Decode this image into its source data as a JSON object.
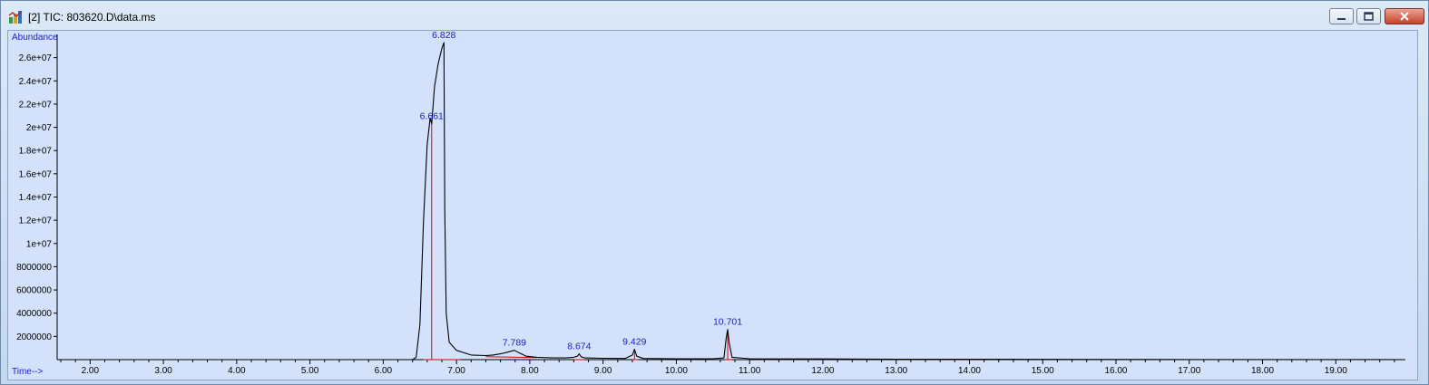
{
  "window": {
    "title": "[2] TIC: 803620.D\\data.ms",
    "icon": "chromatogram-app-icon",
    "controls": [
      "minimize-icon",
      "restore-icon",
      "close-icon"
    ]
  },
  "chart_data": {
    "type": "line",
    "ylabel": "Abundance",
    "xlabel": "Time-->",
    "xlim": [
      1.55,
      19.95
    ],
    "ylim": [
      0,
      28000000.0
    ],
    "x_ticks": [
      "2.00",
      "3.00",
      "4.00",
      "5.00",
      "6.00",
      "7.00",
      "8.00",
      "9.00",
      "10.00",
      "11.00",
      "12.00",
      "13.00",
      "14.00",
      "15.00",
      "16.00",
      "17.00",
      "18.00",
      "19.00"
    ],
    "x_tick_values": [
      2,
      3,
      4,
      5,
      6,
      7,
      8,
      9,
      10,
      11,
      12,
      13,
      14,
      15,
      16,
      17,
      18,
      19
    ],
    "y_ticks": [
      "2000000",
      "4000000",
      "6000000",
      "8000000",
      "1e+07",
      "1.2e+07",
      "1.4e+07",
      "1.6e+07",
      "1.8e+07",
      "2e+07",
      "2.2e+07",
      "2.4e+07",
      "2.6e+07"
    ],
    "y_tick_values": [
      2000000,
      4000000,
      6000000,
      8000000,
      10000000,
      12000000,
      14000000,
      16000000,
      18000000,
      20000000,
      22000000,
      24000000,
      26000000
    ],
    "grid": false,
    "colors": {
      "trace": "#000000",
      "integration": "#e00000",
      "labels": "#1a1acc",
      "background": "#d3e2fa"
    },
    "series": [
      {
        "x": [
          1.55,
          6.4,
          6.45,
          6.5,
          6.55,
          6.6,
          6.64,
          6.661,
          6.67,
          6.7,
          6.75,
          6.8,
          6.828,
          6.84,
          6.86,
          6.9,
          7.0,
          7.2,
          7.4,
          7.5,
          7.6,
          7.7,
          7.789,
          7.85,
          7.95,
          8.1,
          8.3,
          8.5,
          8.6,
          8.65,
          8.674,
          8.7,
          8.75,
          9.0,
          9.3,
          9.4,
          9.429,
          9.46,
          9.55,
          10.0,
          10.5,
          10.65,
          10.68,
          10.701,
          10.72,
          10.76,
          11.0,
          12.0,
          13.0,
          14.0,
          15.0,
          16.0,
          17.0,
          18.0,
          19.0,
          19.95
        ],
        "y": [
          0,
          0,
          200000,
          3000000,
          12000000,
          18500000,
          20800000,
          20300000,
          21000000,
          23500000,
          25500000,
          26800000,
          27300000,
          13000000,
          4000000,
          1500000,
          800000,
          400000,
          350000,
          400000,
          500000,
          650000,
          800000,
          600000,
          300000,
          200000,
          150000,
          150000,
          200000,
          300000,
          500000,
          250000,
          150000,
          120000,
          100000,
          400000,
          900000,
          300000,
          100000,
          80000,
          80000,
          150000,
          1800000,
          2600000,
          1500000,
          200000,
          80000,
          60000,
          40000,
          30000,
          20000,
          15000,
          10000,
          8000,
          5000,
          0
        ]
      }
    ],
    "peaks": [
      {
        "rt": 6.661,
        "label": "6.661",
        "apex": 20300000
      },
      {
        "rt": 6.828,
        "label": "6.828",
        "apex": 27300000
      },
      {
        "rt": 7.789,
        "label": "7.789",
        "apex": 800000
      },
      {
        "rt": 8.674,
        "label": "8.674",
        "apex": 500000
      },
      {
        "rt": 9.429,
        "label": "9.429",
        "apex": 900000
      },
      {
        "rt": 10.701,
        "label": "10.701",
        "apex": 2600000
      }
    ],
    "integration_baselines": [
      {
        "x": [
          6.55,
          7.05
        ],
        "y": [
          0,
          0
        ]
      },
      {
        "x": [
          7.4,
          8.1
        ],
        "y": [
          250000,
          180000
        ]
      },
      {
        "x": [
          8.6,
          8.75
        ],
        "y": [
          0,
          0
        ]
      },
      {
        "x": [
          9.4,
          9.48
        ],
        "y": [
          0,
          0
        ]
      },
      {
        "x": [
          10.66,
          10.76
        ],
        "y": [
          0,
          0
        ]
      }
    ],
    "dropline_rts": [
      6.661,
      9.429,
      10.701
    ]
  }
}
